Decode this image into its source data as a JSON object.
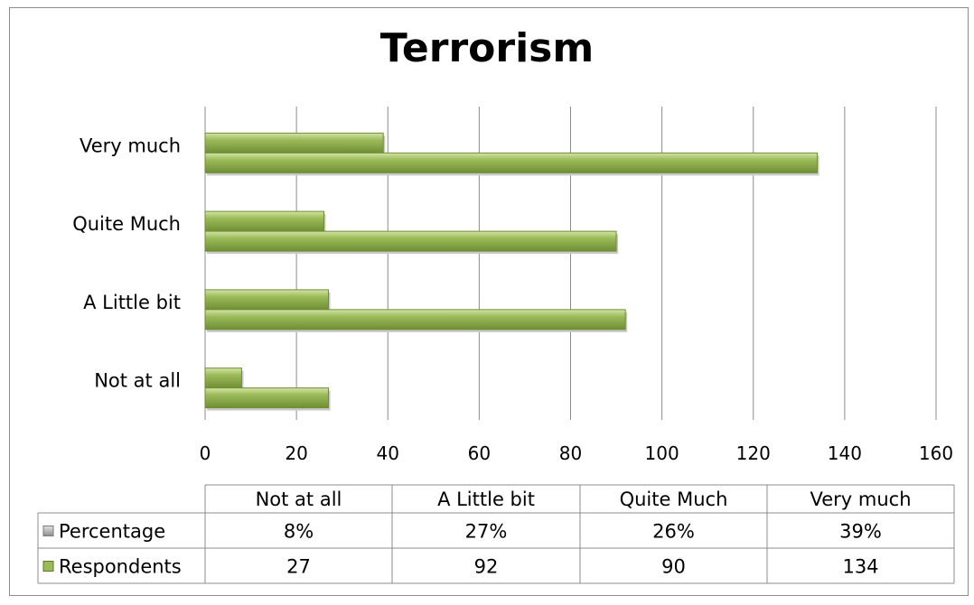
{
  "chart_data": {
    "type": "bar",
    "orientation": "horizontal",
    "title": "Terrorism",
    "categories": [
      "Not at all",
      "A Little bit",
      "Quite Much",
      "Very much"
    ],
    "series": [
      {
        "name": "Percentage",
        "values": [
          8,
          27,
          26,
          39
        ],
        "labels": [
          "8%",
          "27%",
          "26%",
          "39%"
        ],
        "color": "#9BBB59"
      },
      {
        "name": "Respondents",
        "values": [
          27,
          92,
          90,
          134
        ],
        "labels": [
          "27",
          "92",
          "90",
          "134"
        ],
        "color": "#9BBB59"
      }
    ],
    "xlim": [
      0,
      160
    ],
    "xticks": [
      0,
      20,
      40,
      60,
      80,
      100,
      120,
      140,
      160
    ],
    "grid": true,
    "data_table": true
  }
}
